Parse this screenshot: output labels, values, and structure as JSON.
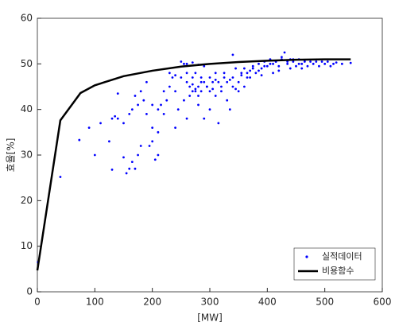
{
  "chart_data": {
    "type": "scatter",
    "xlabel": "[MW]",
    "ylabel": "효율[%]",
    "xlim": [
      0,
      600
    ],
    "xticks": [
      0,
      100,
      200,
      300,
      400,
      500,
      600
    ],
    "ylim": [
      0,
      60
    ],
    "yticks": [
      0,
      10,
      20,
      30,
      40,
      50,
      60
    ],
    "grid": false,
    "legend": "lower right",
    "series": [
      {
        "name": "실적데이터",
        "color": "#0000ff",
        "style": "markers",
        "x": [
          1,
          40,
          73,
          90,
          100,
          110,
          125,
          130,
          135,
          140,
          140,
          150,
          155,
          160,
          165,
          170,
          175,
          165,
          170,
          175,
          180,
          185,
          190,
          195,
          200,
          200,
          205,
          210,
          210,
          215,
          220,
          225,
          230,
          235,
          240,
          245,
          250,
          255,
          255,
          260,
          260,
          265,
          270,
          270,
          275,
          275,
          280,
          280,
          285,
          285,
          290,
          295,
          300,
          300,
          305,
          310,
          310,
          315,
          320,
          325,
          330,
          335,
          340,
          340,
          345,
          350,
          355,
          360,
          365,
          370,
          375,
          380,
          385,
          390,
          395,
          400,
          405,
          410,
          415,
          420,
          425,
          430,
          435,
          440,
          445,
          450,
          455,
          460,
          465,
          470,
          475,
          480,
          485,
          490,
          495,
          500,
          505,
          510,
          515,
          520,
          530,
          545,
          250,
          260,
          270,
          280,
          290,
          230,
          240,
          280,
          300,
          320,
          330,
          350,
          360,
          370,
          390,
          410,
          420,
          440,
          460,
          130,
          150,
          160,
          180,
          190,
          200,
          210,
          220,
          240,
          260,
          265,
          290,
          310,
          340,
          345,
          270,
          275,
          285,
          295,
          305,
          315,
          325,
          335,
          355,
          365,
          375,
          385,
          395,
          405,
          415,
          425,
          435,
          445,
          455,
          465
        ],
        "values": [
          6.5,
          25.2,
          33.3,
          36,
          30,
          37,
          33,
          26.8,
          38.5,
          38,
          43.5,
          29.5,
          26,
          27,
          28.5,
          27,
          30,
          40,
          43,
          41,
          44,
          42,
          46,
          32,
          33,
          36,
          29,
          35,
          30,
          41,
          44,
          42,
          45,
          47,
          44,
          40,
          47,
          50,
          42,
          48,
          38,
          45,
          44,
          47,
          44.5,
          48,
          45,
          43,
          47,
          44,
          38,
          45,
          47,
          40,
          46,
          48,
          43,
          37,
          45,
          48,
          46,
          40,
          47,
          52,
          49,
          46,
          48,
          49,
          47,
          48.5,
          49.5,
          48,
          50,
          49,
          50.5,
          49.5,
          51,
          50,
          50.5,
          49.5,
          51.5,
          52.5,
          50,
          51,
          50.5,
          49.5,
          51,
          50,
          50.5,
          49.5,
          50.5,
          50,
          50.5,
          49.5,
          50.5,
          50,
          50.5,
          49.5,
          50,
          50.3,
          50,
          50.2,
          50.5,
          50,
          50.3,
          49.8,
          49.5,
          48,
          47.5,
          41,
          44,
          44,
          42,
          44,
          45,
          47,
          47.5,
          48,
          48.5,
          49,
          49,
          38,
          37,
          39,
          32,
          39,
          41,
          40,
          39,
          36,
          46,
          43,
          46,
          46.5,
          45,
          44.5,
          45.5,
          44,
          46,
          45,
          44.5,
          46,
          47,
          46.5,
          47.5,
          48,
          49,
          48.5,
          49.5,
          50,
          50.5,
          51,
          50.5,
          51,
          50,
          50.8
        ]
      },
      {
        "name": "비용함수",
        "color": "#000000",
        "style": "line",
        "x": [
          0,
          40,
          75,
          100,
          150,
          200,
          250,
          300,
          350,
          400,
          450,
          500,
          545
        ],
        "values": [
          4.7,
          37.6,
          43.6,
          45.3,
          47.3,
          48.5,
          49.4,
          50.0,
          50.4,
          50.7,
          50.9,
          51.0,
          51.0
        ]
      }
    ]
  }
}
